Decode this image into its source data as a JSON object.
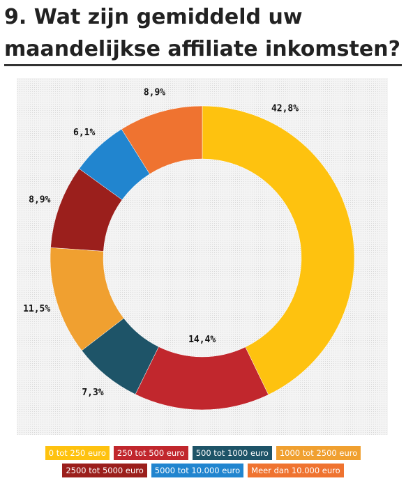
{
  "header": {
    "title_line1": "9. Wat zijn gemiddeld uw",
    "title_line2": "maandelijkse affiliate inkomsten?"
  },
  "chart_data": {
    "type": "pie",
    "donut": true,
    "categories": [
      "0 tot 250 euro",
      "250 tot 500 euro",
      "500 tot 1000 euro",
      "1000 tot 2500 euro",
      "2500 tot 5000 euro",
      "5000 tot 10.000 euro",
      "Meer dan 10.000 euro"
    ],
    "values": [
      42.8,
      14.4,
      7.3,
      11.5,
      8.9,
      6.1,
      8.9
    ],
    "labels": [
      "42,8%",
      "14,4%",
      "7,3%",
      "11,5%",
      "8,9%",
      "6,1%",
      "8,9%"
    ],
    "colors": [
      "#fec20f",
      "#c1272d",
      "#1e5468",
      "#f0a030",
      "#9b1f1c",
      "#2185cf",
      "#ef7330"
    ],
    "legend_placement": "bottom"
  }
}
